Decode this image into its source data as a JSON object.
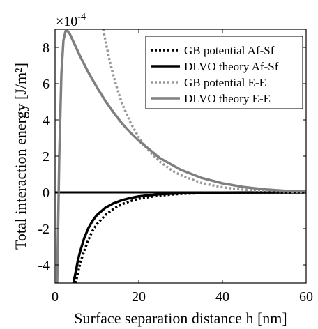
{
  "chart_data": {
    "type": "line",
    "xlabel": "Surface separation distance h [nm]",
    "ylabel": "Total interaction energy [J/m²]",
    "y_multiplier": {
      "base": "×10",
      "exponent": "-4"
    },
    "xlim": [
      0,
      60
    ],
    "ylim": [
      -5,
      9
    ],
    "x_ticks": [
      0,
      20,
      40,
      60
    ],
    "y_ticks": [
      -4,
      -2,
      0,
      2,
      4,
      6,
      8
    ],
    "x_tick_labels": [
      "0",
      "20",
      "40",
      "60"
    ],
    "y_tick_labels": [
      "-4",
      "-2",
      "0",
      "2",
      "4",
      "6",
      "8"
    ],
    "legend_position": "top-right",
    "grid": false,
    "series": [
      {
        "name": "GB potential Af-Sf",
        "color": "#000000",
        "style": "dotted",
        "x": [
          4.9,
          5.5,
          6,
          7,
          8,
          9,
          10,
          12,
          14,
          16,
          18,
          20,
          25,
          30,
          35,
          40,
          45,
          50,
          55,
          60
        ],
        "y": [
          -5,
          -4.4,
          -3.9,
          -3.2,
          -2.6,
          -2.1,
          -1.75,
          -1.25,
          -0.9,
          -0.65,
          -0.48,
          -0.35,
          -0.17,
          -0.08,
          -0.04,
          -0.02,
          -0.01,
          -0.005,
          -0.002,
          0
        ]
      },
      {
        "name": "DLVO theory Af-Sf",
        "color": "#000000",
        "style": "solid",
        "x": [
          4.4,
          5,
          5.5,
          6,
          7,
          8,
          9,
          10,
          12,
          14,
          16,
          18,
          20,
          25,
          30,
          35,
          40,
          45,
          50,
          55,
          60
        ],
        "y": [
          -5,
          -4.3,
          -3.7,
          -3.25,
          -2.5,
          -1.95,
          -1.55,
          -1.25,
          -0.85,
          -0.6,
          -0.43,
          -0.31,
          -0.22,
          -0.1,
          -0.05,
          -0.02,
          -0.01,
          -0.005,
          -0.002,
          -0.001,
          0
        ]
      },
      {
        "name": "GB potential E-E",
        "color": "#999999",
        "style": "dotted",
        "x": [
          11.5,
          12,
          13,
          14,
          15,
          16,
          18,
          20,
          22,
          25,
          28,
          30,
          35,
          40,
          45,
          50,
          55,
          60
        ],
        "y": [
          9,
          8.4,
          7.3,
          6.4,
          5.6,
          4.9,
          3.85,
          3.05,
          2.4,
          1.7,
          1.2,
          0.95,
          0.52,
          0.28,
          0.15,
          0.08,
          0.04,
          0.02
        ]
      },
      {
        "name": "DLVO theory E-E",
        "color": "#7f7f7f",
        "style": "solid",
        "x": [
          0.5,
          1,
          1.5,
          2,
          2.5,
          3,
          3.5,
          4,
          5,
          6,
          8,
          10,
          12,
          14,
          16,
          18,
          20,
          25,
          30,
          35,
          40,
          45,
          50,
          55,
          60
        ],
        "y": [
          -5,
          2,
          6.5,
          8.4,
          8.9,
          8.9,
          8.75,
          8.5,
          8.0,
          7.5,
          6.6,
          5.8,
          5.05,
          4.4,
          3.8,
          3.3,
          2.85,
          1.9,
          1.25,
          0.8,
          0.5,
          0.3,
          0.17,
          0.09,
          0.05
        ]
      }
    ]
  }
}
